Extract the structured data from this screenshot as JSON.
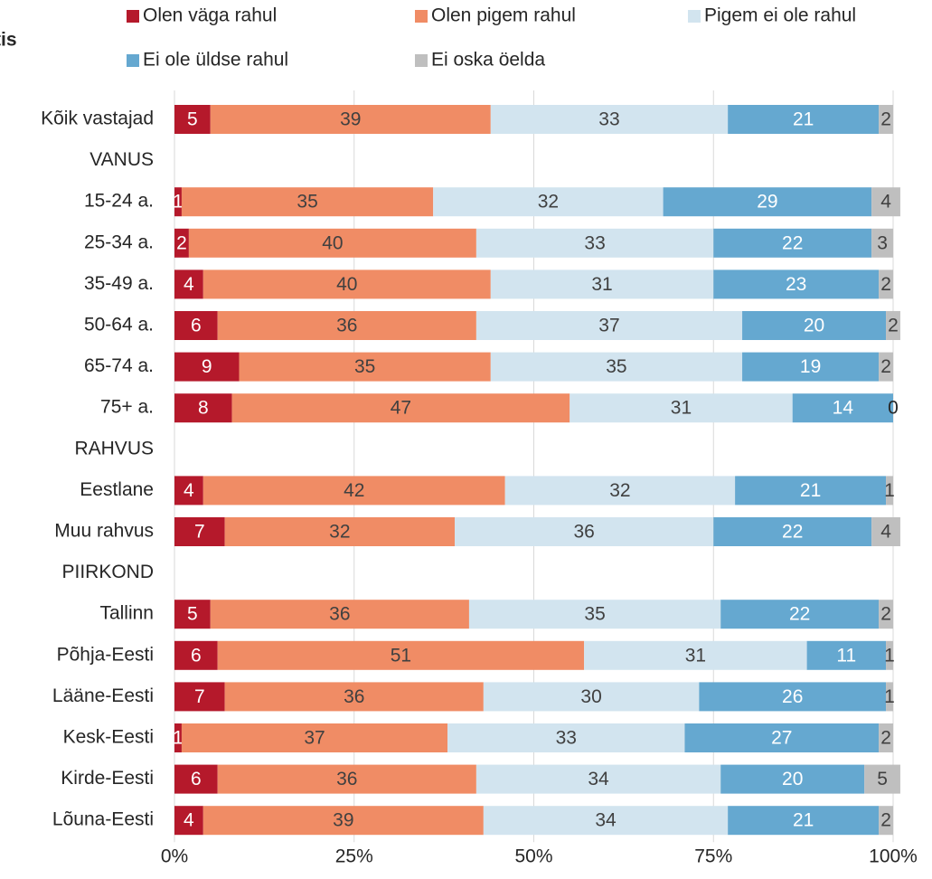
{
  "chart_data": {
    "type": "stacked_bar_horizontal",
    "title": "tis",
    "categories": [
      "Kõik vastajad",
      "VANUS",
      "15-24 a.",
      "25-34 a.",
      "35-49 a.",
      "50-64 a.",
      "65-74 a.",
      "75+ a.",
      "RAHVUS",
      "Eestlane",
      "Muu rahvus",
      "PIIRKOND",
      "Tallinn",
      "Põhja-Eesti",
      "Lääne-Eesti",
      "Kesk-Eesti",
      "Kirde-Eesti",
      "Lõuna-Eesti"
    ],
    "series": [
      {
        "name": "Olen väga rahul",
        "color": "#b5192b",
        "label_color": "#ffffff",
        "values": [
          5,
          null,
          1,
          2,
          4,
          6,
          9,
          8,
          null,
          4,
          7,
          null,
          5,
          6,
          7,
          1,
          6,
          4
        ]
      },
      {
        "name": "Olen pigem rahul",
        "color": "#f08c65",
        "label_color": "#404040",
        "values": [
          39,
          null,
          35,
          40,
          40,
          36,
          35,
          47,
          null,
          42,
          32,
          null,
          36,
          51,
          36,
          37,
          36,
          39
        ]
      },
      {
        "name": "Pigem ei ole rahul",
        "color": "#d2e4ef",
        "label_color": "#404040",
        "values": [
          33,
          null,
          32,
          33,
          31,
          37,
          35,
          31,
          null,
          32,
          36,
          null,
          35,
          31,
          30,
          33,
          34,
          34
        ]
      },
      {
        "name": "Ei ole üldse rahul",
        "color": "#65a8d0",
        "label_color": "#ffffff",
        "values": [
          21,
          null,
          29,
          22,
          23,
          20,
          19,
          14,
          null,
          21,
          22,
          null,
          22,
          11,
          26,
          27,
          20,
          21
        ]
      },
      {
        "name": "Ei oska öelda",
        "color": "#bfbfbf",
        "label_color": "#404040",
        "values": [
          2,
          null,
          4,
          3,
          2,
          2,
          2,
          0,
          null,
          1,
          4,
          null,
          2,
          1,
          1,
          2,
          5,
          2
        ]
      }
    ],
    "xlim": [
      0,
      100
    ],
    "xticks": [
      {
        "value": 0,
        "label": "0%"
      },
      {
        "value": 25,
        "label": "25%"
      },
      {
        "value": 50,
        "label": "50%"
      },
      {
        "value": 75,
        "label": "75%"
      },
      {
        "value": 100,
        "label": "100%"
      }
    ],
    "grid": true
  }
}
